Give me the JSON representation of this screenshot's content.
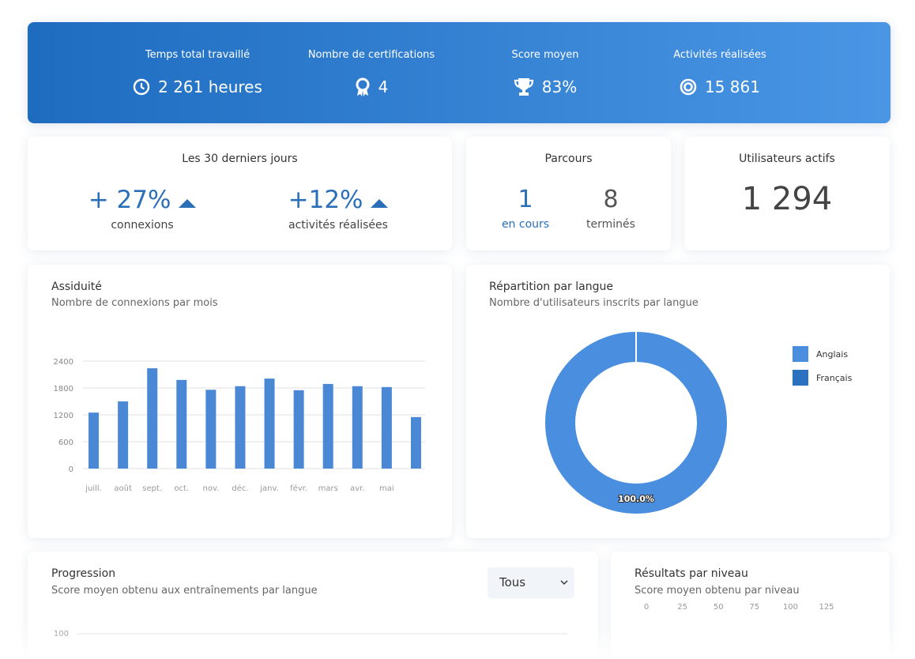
{
  "stats": [
    {
      "label": "Temps total travaillé",
      "value": "2 261 heures"
    },
    {
      "label": "Nombre de certifications",
      "value": "4"
    },
    {
      "label": "Score moyen",
      "value": "83%"
    },
    {
      "label": "Activités réalisées",
      "value": "15 861"
    }
  ],
  "last30": {
    "title": "Les 30 derniers jours",
    "items": [
      {
        "value": "+ 27%",
        "label": "connexions"
      },
      {
        "value": "+12%",
        "label": "activités réalisées"
      }
    ]
  },
  "parcours": {
    "title": "Parcours",
    "items": [
      {
        "value": "1",
        "label": "en cours"
      },
      {
        "value": "8",
        "label": "terminés"
      }
    ]
  },
  "users": {
    "title": "Utilisateurs actifs",
    "value": "1 294"
  },
  "assiduite": {
    "type": "bar",
    "title": "Assiduité",
    "subtitle": "Nombre de connexions par mois",
    "categories": [
      "juill.",
      "août",
      "sept.",
      "oct.",
      "nov.",
      "déc.",
      "janv.",
      "févr.",
      "mars",
      "avr.",
      "mai",
      null
    ],
    "values": [
      1250,
      1500,
      2240,
      1980,
      1760,
      1840,
      2010,
      1750,
      1890,
      1840,
      1820,
      1150
    ],
    "color": "#4a88d6",
    "ylim": [
      0,
      2400
    ],
    "yticks": [
      0,
      600,
      1200,
      1800,
      2400
    ],
    "grid": true
  },
  "langue": {
    "type": "pie",
    "title": "Répartition par langue",
    "subtitle": "Nombre d'utilisateurs inscrits par langue",
    "series": [
      {
        "name": "Anglais",
        "color": "#4a8ee0",
        "value": 100,
        "value_label": "100.0%"
      },
      {
        "name": "Français",
        "color": "#2a72c0",
        "value": 0
      }
    ]
  },
  "progression": {
    "title": "Progression",
    "subtitle": "Score moyen obtenu aux entraînements par langue",
    "filter": "Tous",
    "yticks": [
      100
    ]
  },
  "resultats": {
    "title": "Résultats par niveau",
    "subtitle": "Score moyen obtenu par niveau",
    "xlim": [
      0,
      125
    ],
    "xticks": [
      0,
      25,
      50,
      75,
      100,
      125
    ]
  }
}
